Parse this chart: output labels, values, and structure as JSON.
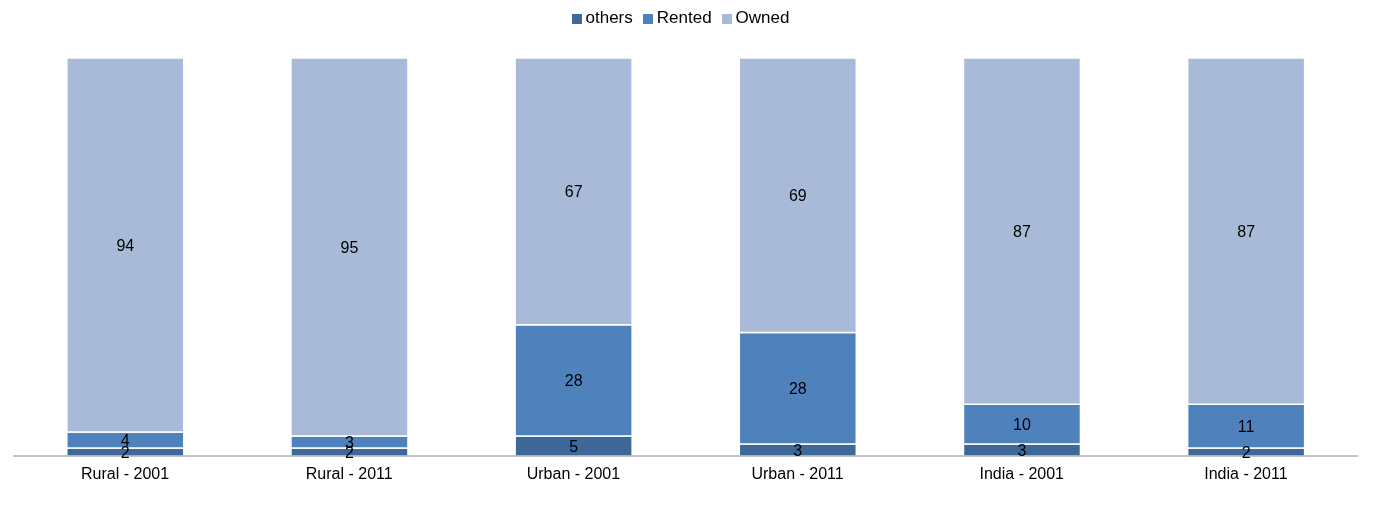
{
  "chart_data": {
    "type": "bar",
    "stacked": true,
    "data_labels": true,
    "legend": "top",
    "grid": false,
    "categories": [
      "Rural - 2001",
      "Rural - 2011",
      "Urban - 2001",
      "Urban - 2011",
      "India - 2001",
      "India - 2011"
    ],
    "series": [
      {
        "name": "others",
        "color": "#3e679a",
        "values": [
          2,
          2,
          5,
          3,
          3,
          2
        ]
      },
      {
        "name": "Rented",
        "color": "#4f81bd",
        "values": [
          4,
          3,
          28,
          28,
          10,
          11
        ]
      },
      {
        "name": "Owned",
        "color": "#a9b9d8",
        "values": [
          94,
          95,
          67,
          69,
          87,
          87
        ]
      }
    ]
  }
}
